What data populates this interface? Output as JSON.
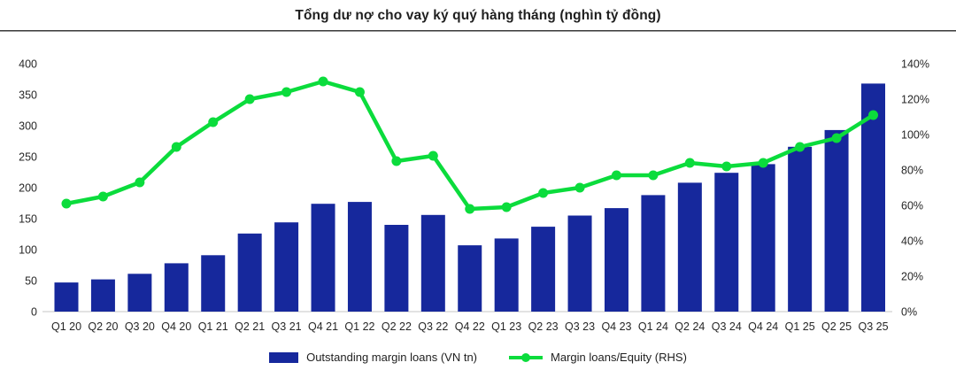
{
  "chart_data": {
    "type": "bar",
    "subtype": "combo-bar-line",
    "title": "Tổng dư nợ cho vay ký quý hàng tháng (nghìn tỷ đồng)",
    "categories": [
      "Q1 20",
      "Q2 20",
      "Q3 20",
      "Q4 20",
      "Q1 21",
      "Q2 21",
      "Q3 21",
      "Q4 21",
      "Q1 22",
      "Q2 22",
      "Q3 22",
      "Q4 22",
      "Q1 23",
      "Q2 23",
      "Q3 23",
      "Q4 23",
      "Q1 24",
      "Q2 24",
      "Q3 24",
      "Q4 24",
      "Q1 25",
      "Q2 25",
      "Q3 25"
    ],
    "series": [
      {
        "name": "Outstanding margin loans (VN tn)",
        "type": "bar",
        "axis": "left",
        "color": "#16289C",
        "values": [
          47,
          52,
          61,
          78,
          91,
          126,
          144,
          174,
          177,
          140,
          156,
          107,
          118,
          137,
          155,
          167,
          188,
          208,
          224,
          238,
          266,
          293,
          368
        ]
      },
      {
        "name": "Margin loans/Equity (RHS)",
        "type": "line",
        "axis": "right",
        "color": "#0BDC3C",
        "values": [
          61,
          65,
          73,
          93,
          107,
          120,
          124,
          130,
          124,
          85,
          88,
          58,
          59,
          67,
          70,
          77,
          77,
          84,
          82,
          84,
          93,
          98,
          111
        ]
      }
    ],
    "left_axis": {
      "min": 0,
      "max": 400,
      "tick_values": [
        0,
        50,
        100,
        150,
        200,
        250,
        300,
        350,
        400
      ],
      "tick_labels": [
        "0",
        "50",
        "100",
        "150",
        "200",
        "250",
        "300",
        "350",
        "400"
      ]
    },
    "right_axis": {
      "min": 0,
      "max": 140,
      "tick_values": [
        0,
        20,
        40,
        60,
        80,
        100,
        120,
        140
      ],
      "tick_labels": [
        "0%",
        "20%",
        "40%",
        "60%",
        "80%",
        "100%",
        "120%",
        "140%"
      ]
    },
    "grid": false,
    "legend_position": "bottom",
    "baseline_color": "#d9d9d9"
  }
}
